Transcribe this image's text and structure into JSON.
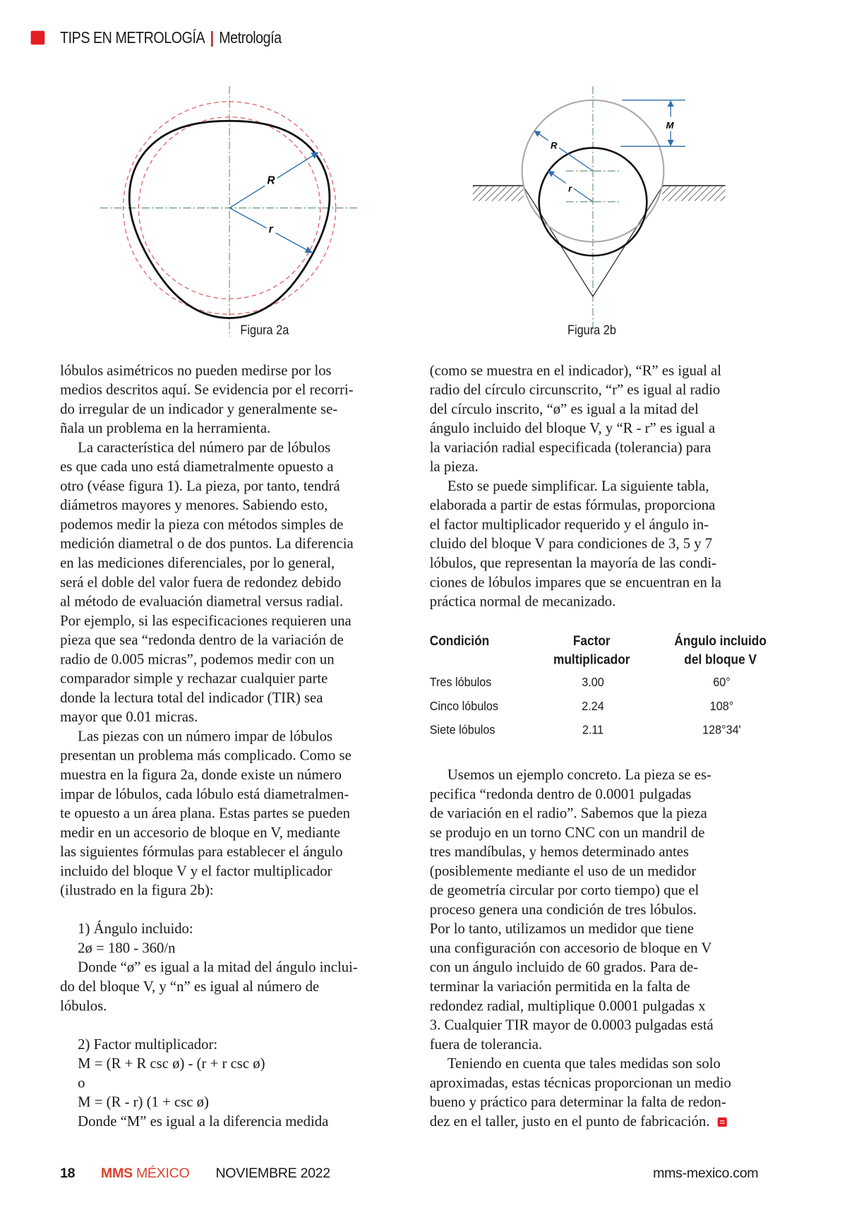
{
  "header": {
    "section": "TIPS EN METROLOGÍA",
    "separator": "|",
    "category": "Metrología",
    "accent_color": "#e31e24"
  },
  "figures": {
    "fig2a": {
      "caption": "Figura 2a",
      "label_R": "R",
      "label_r": "r"
    },
    "fig2b": {
      "caption": "Figura 2b",
      "label_R": "R",
      "label_r": "r",
      "label_M": "M"
    }
  },
  "left_column": [
    "lóbulos asimétricos no pueden medirse por los",
    "medios descritos aquí. Se evidencia por el recorri-",
    "do irregular de un indicador y generalmente se-",
    "ñala un problema en la herramienta.",
    "La característica del número par de lóbulos",
    "es que cada uno está diametralmente opuesto a",
    "otro (véase figura 1). La pieza, por tanto, tendrá",
    "diámetros mayores y menores. Sabiendo esto,",
    "podemos medir la pieza con métodos simples de",
    "medición diametral o de dos puntos. La diferencia",
    "en las mediciones diferenciales, por lo general,",
    "será el doble del valor fuera de redondez debido",
    "al método de evaluación diametral versus radial.",
    "Por ejemplo, si las especificaciones requieren una",
    "pieza que sea “redonda dentro de la variación de",
    "radio de 0.005 micras”, podemos medir con un",
    "comparador simple y rechazar cualquier parte",
    "donde la lectura total del indicador (TIR) sea",
    "mayor que 0.01 micras.",
    "Las piezas con un número impar de lóbulos",
    "presentan un problema más complicado. Como se",
    "muestra en la figura 2a, donde existe un número",
    "impar de lóbulos, cada lóbulo está diametralmen-",
    "te opuesto a un área plana. Estas partes se pueden",
    "medir en un accesorio de bloque en V, mediante",
    "las siguientes fórmulas para establecer el ángulo",
    "incluido del bloque V y el factor multiplicador",
    "(ilustrado en la figura 2b):",
    "",
    "1) Ángulo incluido:",
    "2ø = 180 - 360/n",
    "Donde “ø” es igual a la mitad del ángulo inclui-",
    "do del bloque V, y “n” es igual al número de",
    "lóbulos.",
    "",
    "2) Factor multiplicador:",
    "M = (R + R csc ø) - (r + r csc ø)",
    "o",
    "M = (R - r) (1 + csc ø)",
    "Donde “M” es igual a la diferencia medida"
  ],
  "right_column_top": [
    "(como se muestra en el indicador), “R” es igual al",
    "radio del círculo circunscrito, “r” es igual al radio",
    "del círculo inscrito, “ø” es igual a la mitad del",
    "ángulo incluido del bloque V, y “R - r” es igual a",
    "la variación radial especificada (tolerancia) para",
    "la pieza.",
    "Esto se puede simplificar. La siguiente tabla,",
    "elaborada a partir de estas fórmulas, proporciona",
    "el factor multiplicador requerido y el ángulo in-",
    "cluido del bloque V para condiciones de 3, 5 y 7",
    "lóbulos, que representan la mayoría de las condi-",
    "ciones de lóbulos impares que se encuentran en la",
    "práctica normal de mecanizado."
  ],
  "table": {
    "headers": [
      "Condición",
      "Factor\nmultiplicador",
      "Ángulo incluido\ndel bloque V"
    ],
    "rows": [
      [
        "Tres lóbulos",
        "3.00",
        "60°"
      ],
      [
        "Cinco lóbulos",
        "2.24",
        "108°"
      ],
      [
        "Siete lóbulos",
        "2.11",
        "128°34'"
      ]
    ]
  },
  "right_column_bottom": [
    "Usemos un ejemplo concreto. La pieza se es-",
    "pecifica “redonda dentro de 0.0001 pulgadas",
    "de variación en el radio”. Sabemos que la pieza",
    "se produjo en un torno CNC con un mandril de",
    "tres mandíbulas, y hemos determinado antes",
    "(posiblemente mediante el uso de un medidor",
    "de geometría circular por corto tiempo) que el",
    "proceso genera una condición de tres lóbulos.",
    "Por lo tanto, utilizamos un medidor que tiene",
    "una configuración con accesorio de bloque en V",
    "con un ángulo incluido de 60 grados. Para de-",
    "terminar la variación permitida en la falta de",
    "redondez radial, multiplique 0.0001 pulgadas x",
    "3. Cualquier TIR mayor de 0.0003 pulgadas está",
    "fuera de tolerancia.",
    "Teniendo en cuenta que tales medidas son solo",
    "aproximadas, estas técnicas proporcionan un medio",
    "bueno y práctico para determinar la falta de redon-",
    "dez en el taller, justo en el punto de fabricación."
  ],
  "footer": {
    "page_number": "18",
    "brand_bold": "MMS",
    "brand_light": "MÉXICO",
    "issue": "NOVIEMBRE 2022",
    "website": "mms-mexico.com",
    "brand_color": "#d9432f"
  },
  "end_icon": "article-end-icon"
}
